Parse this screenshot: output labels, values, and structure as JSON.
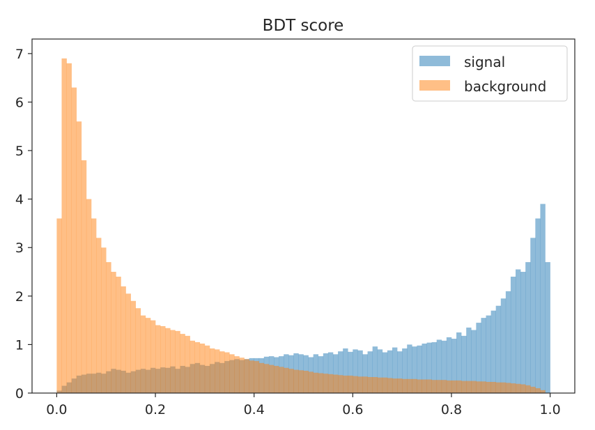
{
  "chart_data": {
    "type": "bar",
    "title": "BDT score",
    "xlabel": "",
    "ylabel": "",
    "xlim": [
      -0.05,
      1.05
    ],
    "ylim": [
      0,
      7.3
    ],
    "xticks": [
      "0.0",
      "0.2",
      "0.4",
      "0.6",
      "0.8",
      "1.0"
    ],
    "yticks": [
      "0",
      "1",
      "2",
      "3",
      "4",
      "5",
      "6",
      "7"
    ],
    "bin_start": 0.0,
    "bin_width": 0.01,
    "legend_position": "top-right",
    "grid": false,
    "series": [
      {
        "name": "signal",
        "color": "#1f77b4",
        "values": [
          0.05,
          0.15,
          0.22,
          0.3,
          0.36,
          0.38,
          0.4,
          0.4,
          0.42,
          0.4,
          0.45,
          0.5,
          0.48,
          0.46,
          0.42,
          0.45,
          0.48,
          0.5,
          0.48,
          0.52,
          0.5,
          0.53,
          0.52,
          0.55,
          0.5,
          0.56,
          0.54,
          0.6,
          0.62,
          0.58,
          0.56,
          0.6,
          0.64,
          0.62,
          0.66,
          0.68,
          0.7,
          0.68,
          0.7,
          0.72,
          0.72,
          0.72,
          0.75,
          0.76,
          0.74,
          0.76,
          0.8,
          0.78,
          0.82,
          0.8,
          0.78,
          0.74,
          0.8,
          0.76,
          0.82,
          0.84,
          0.8,
          0.86,
          0.92,
          0.85,
          0.9,
          0.88,
          0.8,
          0.86,
          0.96,
          0.9,
          0.84,
          0.88,
          0.94,
          0.86,
          0.92,
          1.0,
          0.96,
          0.98,
          1.02,
          1.04,
          1.05,
          1.1,
          1.08,
          1.15,
          1.12,
          1.25,
          1.18,
          1.35,
          1.3,
          1.45,
          1.55,
          1.6,
          1.7,
          1.8,
          1.95,
          2.1,
          2.4,
          2.55,
          2.5,
          2.7,
          3.2,
          3.6,
          3.9,
          2.7
        ]
      },
      {
        "name": "background",
        "color": "#ff7f0e",
        "values": [
          3.6,
          6.9,
          6.8,
          6.3,
          5.6,
          4.8,
          4.0,
          3.6,
          3.2,
          3.0,
          2.7,
          2.5,
          2.4,
          2.2,
          2.05,
          1.9,
          1.75,
          1.6,
          1.55,
          1.5,
          1.4,
          1.38,
          1.34,
          1.3,
          1.28,
          1.22,
          1.18,
          1.08,
          1.05,
          1.02,
          0.98,
          0.92,
          0.9,
          0.86,
          0.84,
          0.8,
          0.76,
          0.73,
          0.7,
          0.67,
          0.66,
          0.62,
          0.6,
          0.58,
          0.56,
          0.54,
          0.52,
          0.5,
          0.48,
          0.47,
          0.46,
          0.44,
          0.42,
          0.41,
          0.4,
          0.39,
          0.38,
          0.37,
          0.36,
          0.36,
          0.35,
          0.34,
          0.34,
          0.33,
          0.33,
          0.32,
          0.32,
          0.31,
          0.3,
          0.3,
          0.29,
          0.29,
          0.29,
          0.28,
          0.28,
          0.28,
          0.27,
          0.27,
          0.27,
          0.26,
          0.26,
          0.26,
          0.25,
          0.25,
          0.25,
          0.24,
          0.24,
          0.23,
          0.23,
          0.22,
          0.22,
          0.21,
          0.2,
          0.19,
          0.18,
          0.16,
          0.13,
          0.1,
          0.06,
          0.0
        ]
      }
    ]
  }
}
